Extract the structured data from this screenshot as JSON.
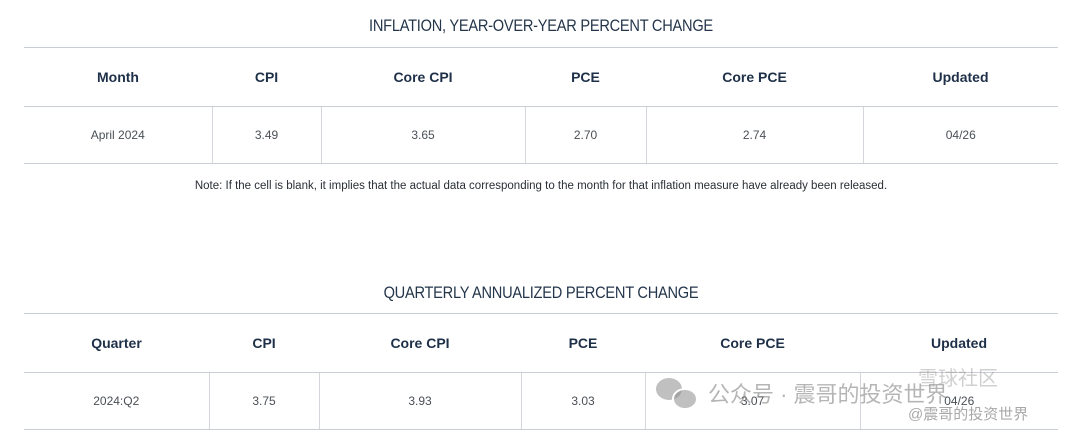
{
  "inflation_yoy": {
    "title": "INFLATION, YEAR-OVER-YEAR PERCENT CHANGE",
    "headers": [
      "Month",
      "CPI",
      "Core CPI",
      "PCE",
      "Core PCE",
      "Updated"
    ],
    "row": [
      "April 2024",
      "3.49",
      "3.65",
      "2.70",
      "2.74",
      "04/26"
    ]
  },
  "note": "Note: If the cell is blank, it implies that the actual data corresponding to the month for that inflation measure have already been released.",
  "quarterly": {
    "title": "QUARTERLY ANNUALIZED PERCENT CHANGE",
    "headers": [
      "Quarter",
      "CPI",
      "Core CPI",
      "PCE",
      "Core PCE",
      "Updated"
    ],
    "row": [
      "2024:Q2",
      "3.75",
      "3.93",
      "3.03",
      "3.07",
      "04/26"
    ]
  },
  "watermark": {
    "main": "公众号 · 震哥的投资世界",
    "brand": "雪球社区",
    "sub": "@震哥的投资世界",
    "icon": "wechat-icon"
  }
}
